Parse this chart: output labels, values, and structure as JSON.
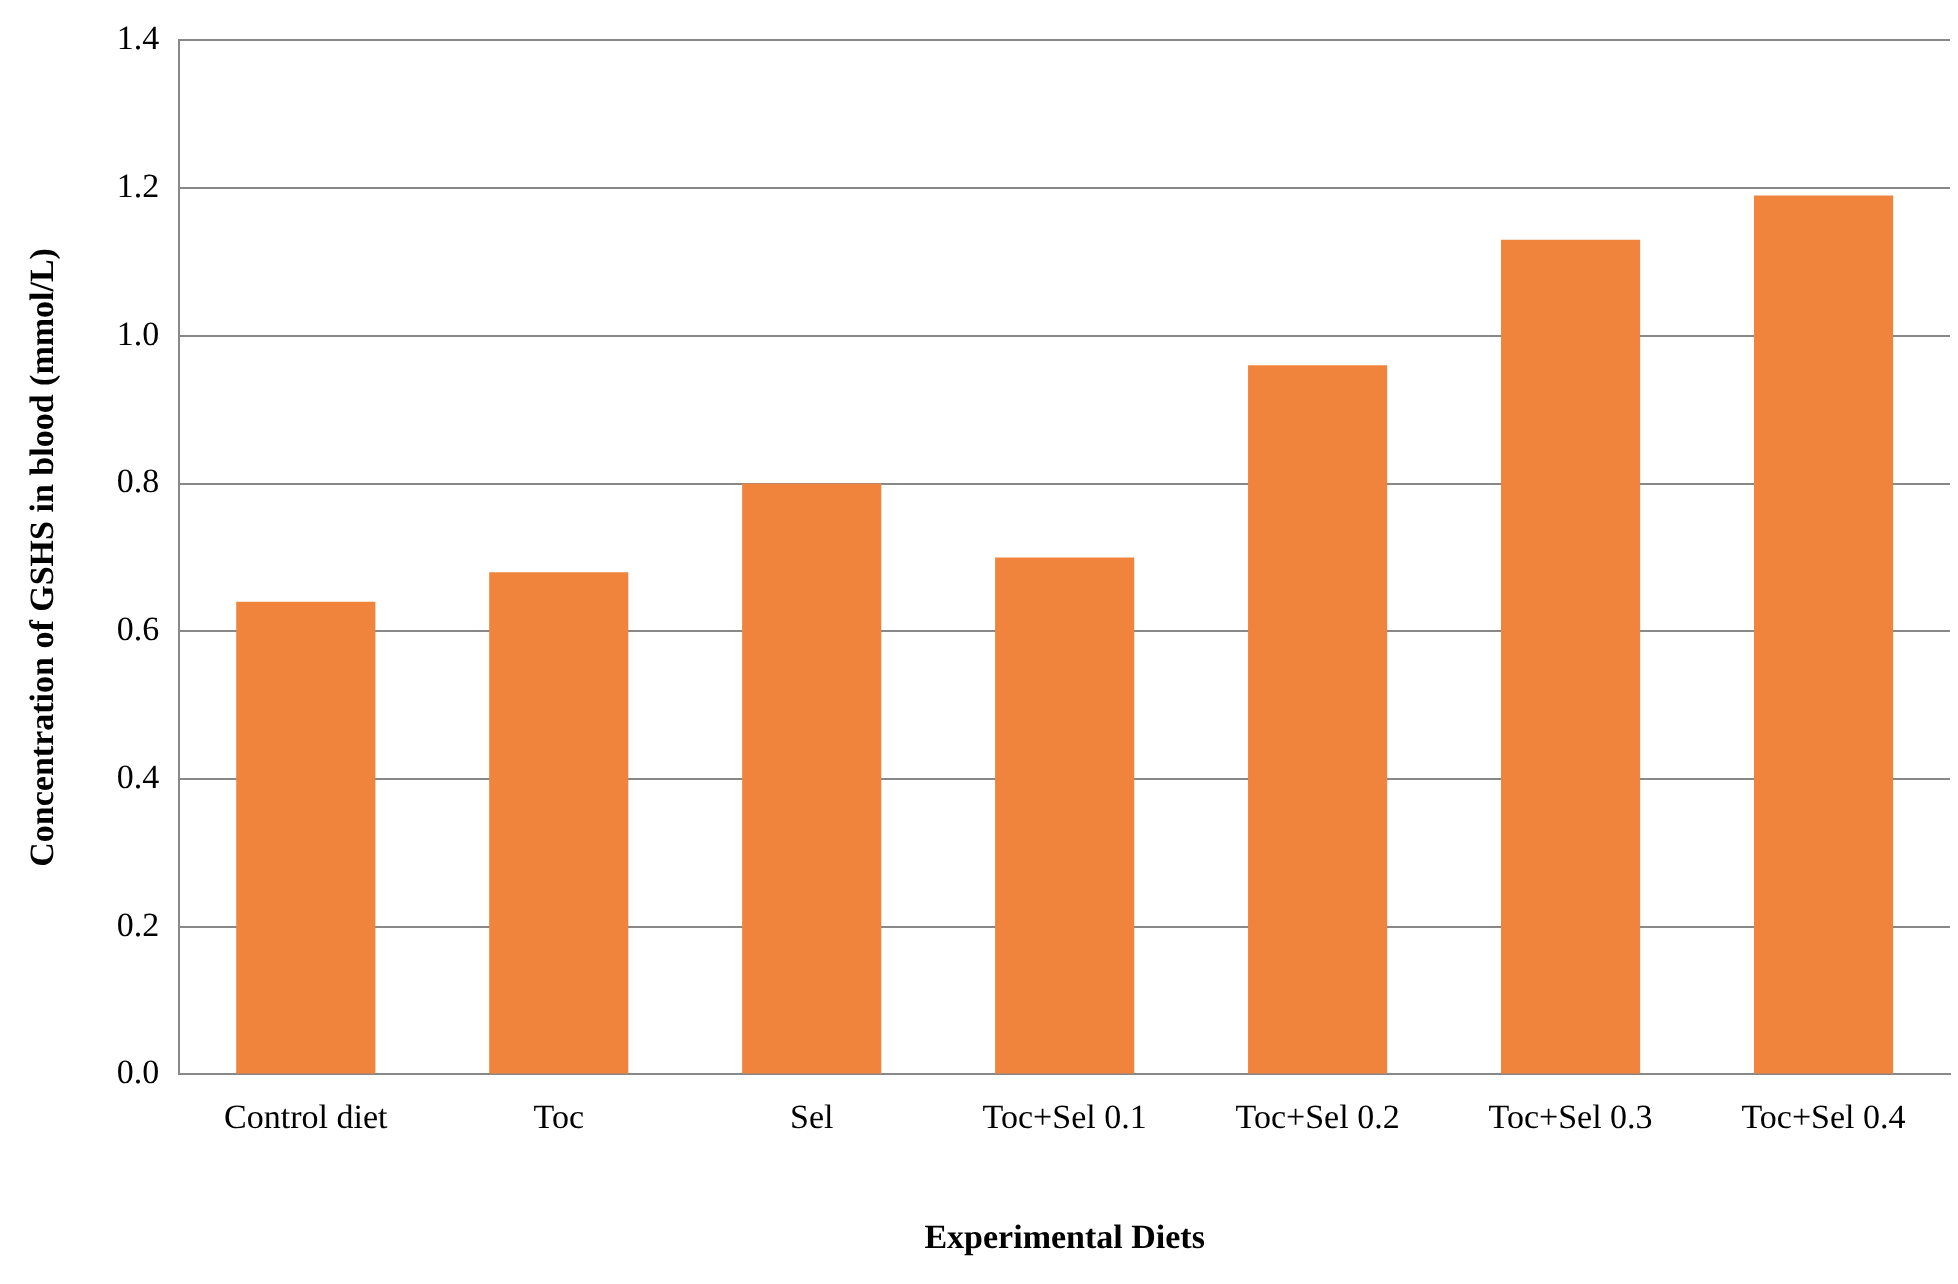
{
  "chart_data": {
    "type": "bar",
    "xlabel": "Experimental Diets",
    "ylabel": "Concentration of GSHS in blood (mmol/L)",
    "categories": [
      "Control diet",
      "Toc",
      "Sel",
      "Toc+Sel 0.1",
      "Toc+Sel 0.2",
      "Toc+Sel 0.3",
      "Toc+Sel 0.4"
    ],
    "values": [
      0.64,
      0.68,
      0.8,
      0.7,
      0.96,
      1.13,
      1.19
    ],
    "color": "#f0843c",
    "ylim": [
      0,
      1.4
    ],
    "yticks": [
      {
        "value": 0,
        "label": "0.0"
      },
      0.2,
      0.4,
      0.6,
      0.8,
      {
        "value": 1,
        "label": "1.0"
      },
      1.2,
      1.4
    ],
    "grid": "y"
  }
}
